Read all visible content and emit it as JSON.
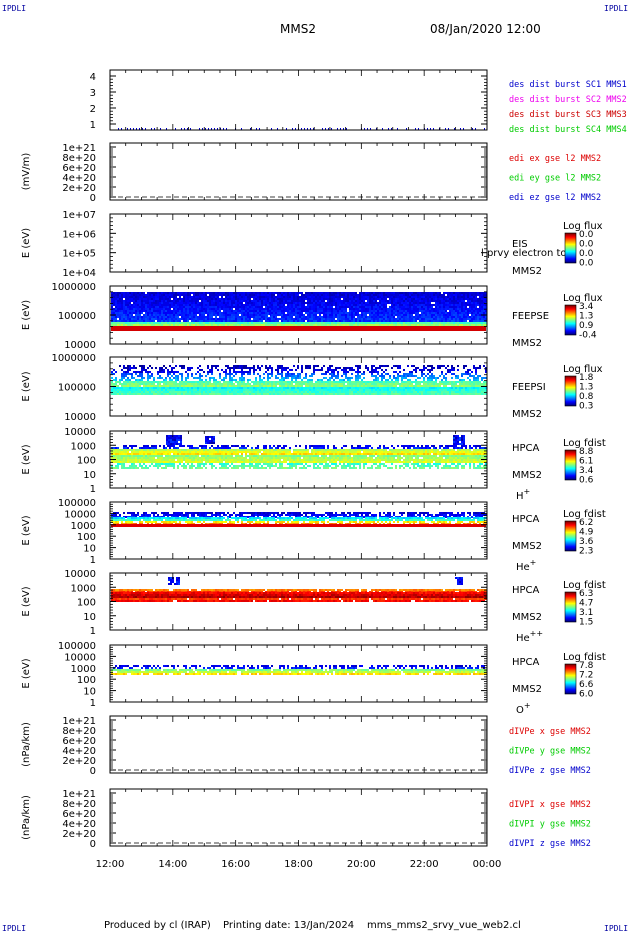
{
  "corners": {
    "top_left": "IPDLI",
    "top_right": "IPDLI",
    "bottom_left": "IPDLI",
    "bottom_right": "IPDLI"
  },
  "header": {
    "spacecraft": "MMS2",
    "datetime": "08/Jan/2020 12:00"
  },
  "footer": {
    "produced_by": "Produced by cl (IRAP)",
    "printing_date": "Printing date: 13/Jan/2024",
    "script": "mms_mms2_srvy_vue_web2.cl"
  },
  "colors": {
    "red": "#dd0000",
    "green": "#00cc00",
    "blue": "#0000cc",
    "magenta": "#ee00ee",
    "darkred": "#cc0000"
  },
  "chart_data": {
    "type": "heatmap",
    "x_ticks": [
      "12:00",
      "14:00",
      "16:00",
      "18:00",
      "20:00",
      "22:00",
      "00:00"
    ],
    "panels": [
      {
        "name": "burst-status",
        "type": "status",
        "yticks": [
          "4",
          "3",
          "2",
          "1"
        ],
        "ylabel": "",
        "legend": [
          {
            "text": "des dist burst SC1 MMS1",
            "color": "#0000cc"
          },
          {
            "text": "des dist burst SC2 MMS2",
            "color": "#ee00ee"
          },
          {
            "text": "des dist burst SC3 MMS3",
            "color": "#cc0000"
          },
          {
            "text": "des dist burst SC4 MMS4",
            "color": "#00cc00"
          }
        ]
      },
      {
        "name": "edi-e-field",
        "type": "line",
        "yticks": [
          "1e+21",
          "8e+20",
          "6e+20",
          "4e+20",
          "2e+20",
          "0"
        ],
        "ylabel": "(mV/m)",
        "legend": [
          {
            "text": "edi ex gse l2 MMS2",
            "color": "#dd0000"
          },
          {
            "text": "edi ey gse l2 MMS2",
            "color": "#00cc00"
          },
          {
            "text": "edi ez gse l2 MMS2",
            "color": "#0000cc"
          }
        ]
      },
      {
        "name": "eis-spectrogram",
        "type": "spectrogram",
        "yticks": [
          "1e+07",
          "1e+06",
          "1e+05",
          "1e+04"
        ],
        "ylabel": "E (eV)",
        "instrument": "EIS",
        "spacecraft": "MMS2",
        "extra_text": "l prvy electron to",
        "colorbar": {
          "title": "Log flux",
          "ticks": [
            "0.0",
            "0.0",
            "0.0",
            "0.0"
          ]
        },
        "texture": "none"
      },
      {
        "name": "feeps-electron",
        "type": "spectrogram",
        "yticks": [
          "1000000",
          "100000",
          "10000"
        ],
        "ylabel": "E (eV)",
        "instrument": "FEEPSE",
        "spacecraft": "MMS2",
        "colorbar": {
          "title": "Log flux",
          "ticks": [
            "3.4",
            "1.3",
            "0.9",
            "-0.4"
          ]
        },
        "texture": "feepse"
      },
      {
        "name": "feeps-ion",
        "type": "spectrogram",
        "yticks": [
          "1000000",
          "100000",
          "10000"
        ],
        "ylabel": "E (eV)",
        "instrument": "FEEPSI",
        "spacecraft": "MMS2",
        "colorbar": {
          "title": "Log flux",
          "ticks": [
            "1.8",
            "1.3",
            "0.8",
            "0.3"
          ]
        },
        "texture": "feepsi"
      },
      {
        "name": "hpca-h",
        "type": "spectrogram",
        "yticks": [
          "10000",
          "1000",
          "100",
          "10",
          "1"
        ],
        "ylabel": "E (eV)",
        "instrument": "HPCA",
        "spacecraft": "MMS2",
        "species": "H",
        "charge": "+",
        "colorbar": {
          "title": "Log fdist",
          "ticks": [
            "8.8",
            "6.1",
            "3.4",
            "0.6"
          ]
        },
        "texture": "hpca_h"
      },
      {
        "name": "hpca-he",
        "type": "spectrogram",
        "yticks": [
          "100000",
          "10000",
          "1000",
          "100",
          "10",
          "1"
        ],
        "ylabel": "E (eV)",
        "instrument": "HPCA",
        "spacecraft": "MMS2",
        "species": "He",
        "charge": "+",
        "colorbar": {
          "title": "Log fdist",
          "ticks": [
            "6.2",
            "4.9",
            "3.6",
            "2.3"
          ]
        },
        "texture": "hpca_he"
      },
      {
        "name": "hpca-he2",
        "type": "spectrogram",
        "yticks": [
          "10000",
          "1000",
          "100",
          "10",
          "1"
        ],
        "ylabel": "E (eV)",
        "instrument": "HPCA",
        "spacecraft": "MMS2",
        "species": "He",
        "charge": "++",
        "colorbar": {
          "title": "Log fdist",
          "ticks": [
            "6.3",
            "4.7",
            "3.1",
            "1.5"
          ]
        },
        "texture": "hpca_he2"
      },
      {
        "name": "hpca-o",
        "type": "spectrogram",
        "yticks": [
          "100000",
          "10000",
          "1000",
          "100",
          "10",
          "1"
        ],
        "ylabel": "E (eV)",
        "instrument": "HPCA",
        "spacecraft": "MMS2",
        "species": "O",
        "charge": "+",
        "colorbar": {
          "title": "Log fdist",
          "ticks": [
            "7.8",
            "7.2",
            "6.6",
            "6.0"
          ]
        },
        "texture": "hpca_o"
      },
      {
        "name": "pe-gradient",
        "type": "line",
        "yticks": [
          "1e+21",
          "8e+20",
          "6e+20",
          "4e+20",
          "2e+20",
          "0"
        ],
        "ylabel": "(nPa/km)",
        "legend": [
          {
            "text": "dIVPe x gse MMS2",
            "color": "#dd0000"
          },
          {
            "text": "dIVPe y gse MMS2",
            "color": "#00cc00"
          },
          {
            "text": "dIVPe z gse MMS2",
            "color": "#0000cc"
          }
        ]
      },
      {
        "name": "pi-gradient",
        "type": "line",
        "yticks": [
          "1e+21",
          "8e+20",
          "6e+20",
          "4e+20",
          "2e+20",
          "0"
        ],
        "ylabel": "(nPa/km)",
        "legend": [
          {
            "text": "dIVPI x gse MMS2",
            "color": "#dd0000"
          },
          {
            "text": "dIVPI y gse MMS2",
            "color": "#00cc00"
          },
          {
            "text": "dIVPI z gse MMS2",
            "color": "#0000cc"
          }
        ]
      }
    ]
  }
}
